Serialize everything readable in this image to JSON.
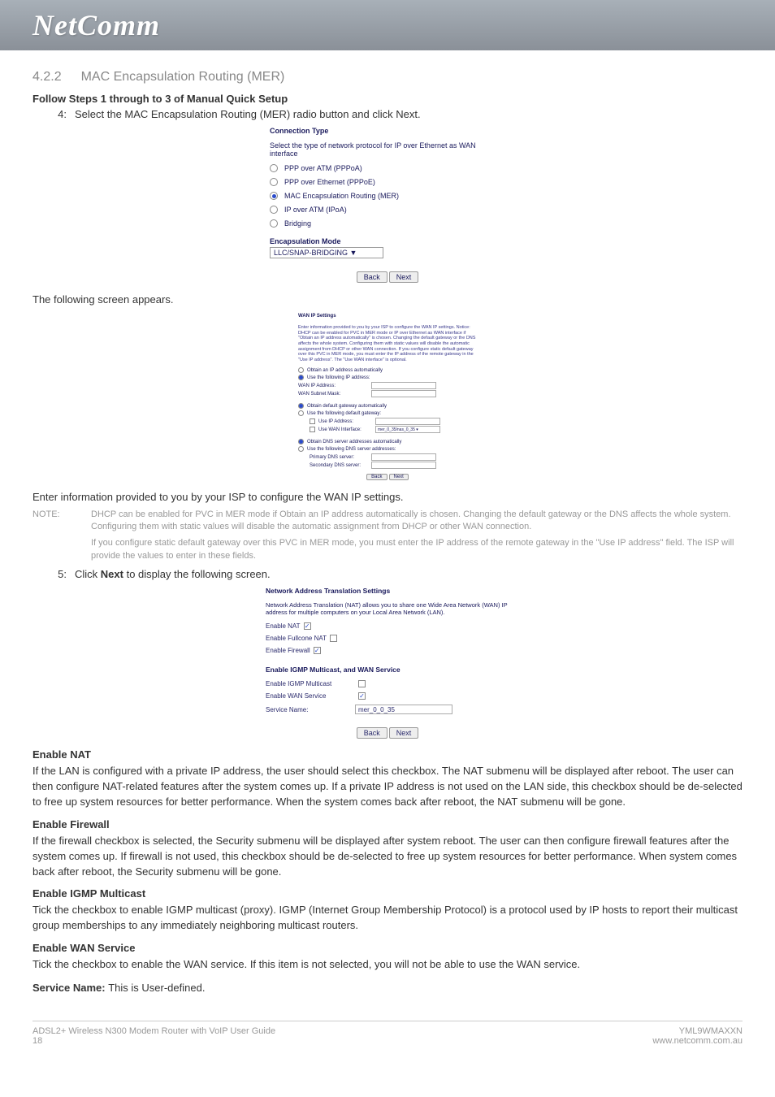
{
  "logo": "NetComm",
  "section": {
    "number": "4.2.2",
    "title": "MAC Encapsulation Routing (MER)"
  },
  "follow_steps_heading": "Follow Steps 1 through to 3 of Manual Quick Setup",
  "step4": {
    "num": "4:",
    "text": "Select the MAC Encapsulation Routing (MER) radio button and click Next."
  },
  "conn_type_ss": {
    "title": "Connection Type",
    "desc": "Select the type of network protocol for IP over Ethernet as WAN interface",
    "options": [
      {
        "label": "PPP over ATM (PPPoA)",
        "selected": false
      },
      {
        "label": "PPP over Ethernet (PPPoE)",
        "selected": false
      },
      {
        "label": "MAC Encapsulation Routing (MER)",
        "selected": true
      },
      {
        "label": "IP over ATM (IPoA)",
        "selected": false
      },
      {
        "label": "Bridging",
        "selected": false
      }
    ],
    "enc_label": "Encapsulation Mode",
    "enc_value": "LLC/SNAP-BRIDGING ▼",
    "back": "Back",
    "next": "Next"
  },
  "following_screen": "The following screen appears.",
  "wan_ss": {
    "title": "WAN IP Settings",
    "blurb": "Enter information provided to you by your ISP to configure the WAN IP settings. Notice: DHCP can be enabled for PVC in MER mode or IP over Ethernet as WAN interface if \"Obtain an IP address automatically\" is chosen. Changing the default gateway or the DNS affects the whole system. Configuring them with static values will disable the automatic assignment from DHCP or other WAN connection. If you configure static default gateway over this PVC in MER mode, you must enter the IP address of the remote gateway in the \"Use IP address\". The \"Use WAN interface\" is optional.",
    "r1a": "Obtain an IP address automatically",
    "r1b": "Use the following IP address:",
    "f_wanip": "WAN IP Address:",
    "f_wanmask": "WAN Subnet Mask:",
    "r2a": "Obtain default gateway automatically",
    "r2b": "Use the following default gateway:",
    "c_useip": "Use IP Address:",
    "c_usewan": "Use WAN Interface:",
    "c_usewan_val": "mer_0_35/nas_0_35 ▾",
    "r3a": "Obtain DNS server addresses automatically",
    "r3b": "Use the following DNS server addresses:",
    "f_pdns": "Primary DNS server:",
    "f_sdns": "Secondary DNS server:",
    "back": "Back",
    "next": "Next"
  },
  "enter_info": "Enter information provided to you by your ISP to configure the WAN IP settings.",
  "note_label": "NOTE:",
  "note1": "DHCP can be enabled for PVC in MER mode if Obtain an IP address automatically is chosen. Changing the default gateway or the DNS affects the whole system. Configuring them with static values will disable the automatic assignment from DHCP or other WAN connection.",
  "note2": "If you configure static default gateway over this PVC in MER mode, you must enter the IP address of the remote gateway in the \"Use IP address\" field. The ISP will provide the values to enter in these fields.",
  "step5": {
    "num": "5:",
    "pre": "Click ",
    "bold": "Next",
    "post": " to display the following screen."
  },
  "nat_ss": {
    "title": "Network Address Translation Settings",
    "desc": "Network Address Translation (NAT) allows you to share one Wide Area Network (WAN) IP address for multiple computers on your Local Area Network (LAN).",
    "enable_nat": "Enable NAT",
    "enable_fullcone": "Enable Fullcone NAT",
    "enable_firewall": "Enable Firewall",
    "section2": "Enable IGMP Multicast, and WAN Service",
    "enable_igmp": "Enable IGMP Multicast",
    "enable_wan": "Enable WAN Service",
    "service_name_lbl": "Service Name:",
    "service_name_val": "mer_0_0_35",
    "back": "Back",
    "next": "Next"
  },
  "enable_nat_h": "Enable NAT",
  "enable_nat_p": "If the LAN is configured with a private IP address, the user should select this checkbox. The NAT submenu will be displayed after reboot. The user can then configure NAT-related features after the system comes up. If a private IP address is not used on the LAN side, this checkbox should be de-selected to free up system resources for better performance. When the system comes back after reboot, the NAT submenu will be gone.",
  "enable_fw_h": "Enable Firewall",
  "enable_fw_p": "If the firewall checkbox is selected, the Security submenu will be displayed after system reboot. The user can then configure firewall features after the system comes up. If firewall is not used, this checkbox should be de-selected to free up system resources for better performance. When system comes back after reboot, the Security submenu will be gone.",
  "enable_igmp_h": "Enable IGMP Multicast",
  "enable_igmp_p": "Tick the checkbox to enable IGMP multicast (proxy). IGMP (Internet Group Membership Protocol) is a protocol used by IP hosts to report their multicast group memberships to any immediately neighboring multicast routers.",
  "enable_wan_h": "Enable WAN Service",
  "enable_wan_p": "Tick the checkbox to enable the WAN service. If this item is not selected, you will not be able to use the WAN service.",
  "service_name_line_pre": "Service Name: ",
  "service_name_line_post": "This is User-defined.",
  "footer": {
    "left1": "ADSL2+ Wireless N300 Modem Router with VoIP User Guide",
    "left2": "18",
    "right1": "YML9WMAXXN",
    "right2": "www.netcomm.com.au"
  }
}
